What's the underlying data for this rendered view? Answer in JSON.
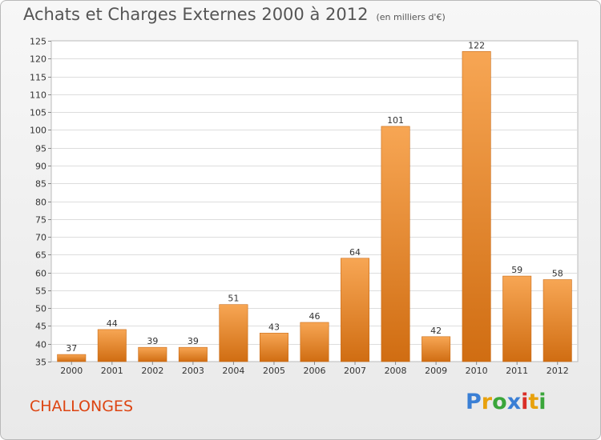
{
  "header": {
    "title": "Achats et Charges Externes 2000 à 2012",
    "subtitle": "(en milliers d'€)"
  },
  "footer": {
    "commune": "CHALLONGES",
    "logo": "Proxiti",
    "logo_colors": [
      "#3a7fd5",
      "#e8a10d",
      "#3aa63a",
      "#3a7fd5",
      "#d92d27",
      "#e8a10d",
      "#3aa63a"
    ]
  },
  "chart_data": {
    "type": "bar",
    "title": "Achats et Charges Externes 2000 à 2012",
    "subtitle": "(en milliers d'€)",
    "xlabel": "",
    "ylabel": "",
    "categories": [
      "2000",
      "2001",
      "2002",
      "2003",
      "2004",
      "2005",
      "2006",
      "2007",
      "2008",
      "2009",
      "2010",
      "2011",
      "2012"
    ],
    "values": [
      37,
      44,
      39,
      39,
      51,
      43,
      46,
      64,
      101,
      42,
      122,
      59,
      58
    ],
    "ylim": [
      35,
      125
    ],
    "ytick_step": 5,
    "grid": true,
    "legend": "none",
    "bar_color": "#f08a2a",
    "bar_color_light": "#f7a654",
    "bar_color_dark": "#d06d12"
  }
}
